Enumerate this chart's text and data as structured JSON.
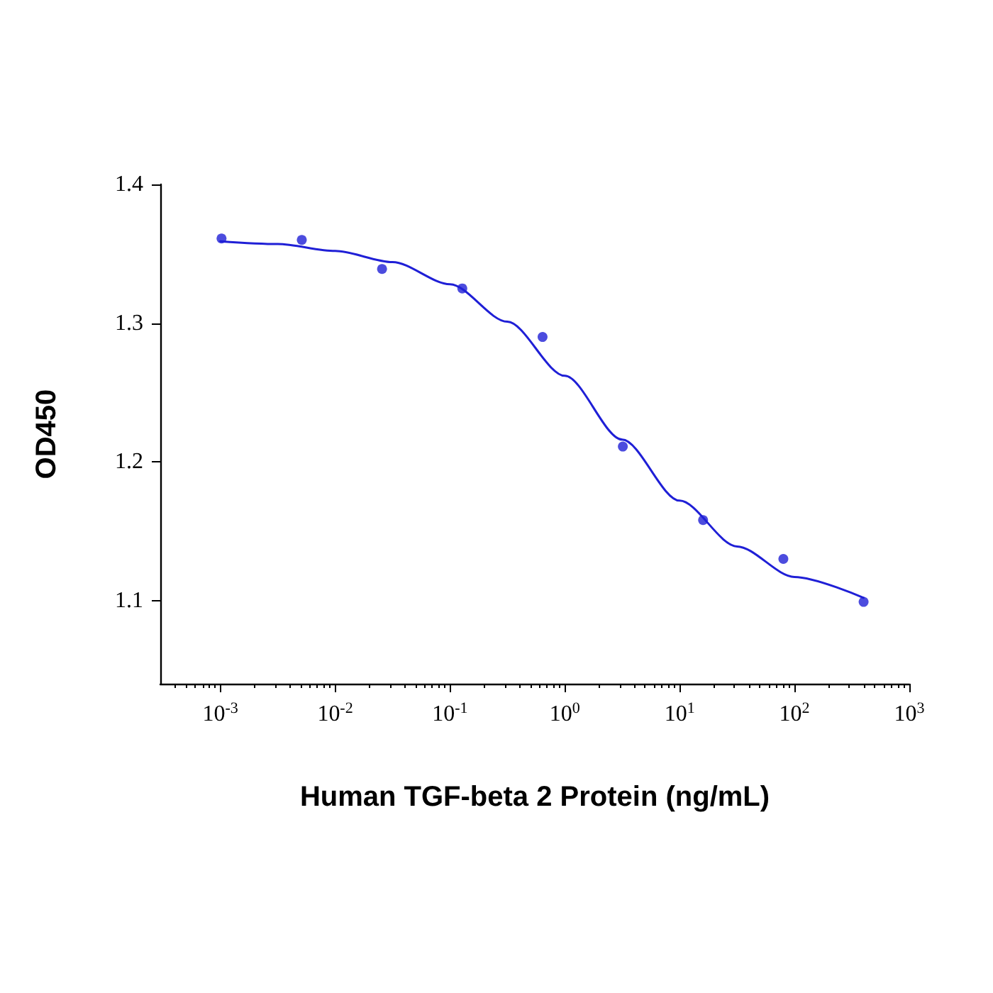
{
  "chart_data": {
    "type": "scatter",
    "xlabel": "Human TGF-beta 2 Protein (ng/mL)",
    "ylabel": "OD450",
    "log": "x",
    "xlim": [
      0.0003,
      1000
    ],
    "xticks": [
      {
        "value": 0.001,
        "label": "10$^{-3}$"
      },
      {
        "value": 0.01,
        "label": "10$^{-2}$"
      },
      {
        "value": 0.1,
        "label": "10$^{-1}$"
      },
      {
        "value": 1,
        "label": "10$^{0}$"
      },
      {
        "value": 10,
        "label": "10$^{1}$"
      },
      {
        "value": 100,
        "label": "10$^{2}$"
      },
      {
        "value": 1000,
        "label": "10$^{3}$"
      }
    ],
    "ylim": [
      1.04,
      1.4
    ],
    "yticks": [
      1.1,
      1.2,
      1.3,
      1.4
    ],
    "grid": false,
    "marker": "circle",
    "series": [
      {
        "color": "#1f1fd6",
        "x": [
          0.001024,
          0.00512,
          0.0256,
          0.128,
          0.64,
          3.2,
          16,
          80,
          400
        ],
        "values": [
          1.361,
          1.36,
          1.339,
          1.325,
          1.29,
          1.211,
          1.158,
          1.13,
          1.099
        ]
      },
      {
        "type": "line",
        "color": "#1f1fd6",
        "marker": "none",
        "line_style": "solid",
        "x": [
          0.001,
          0.00316,
          0.01,
          0.0316,
          0.1,
          0.316,
          1,
          3.16,
          10,
          31.6,
          100,
          400
        ],
        "values": [
          1.359,
          1.357,
          1.352,
          1.344,
          1.328,
          1.301,
          1.262,
          1.216,
          1.172,
          1.139,
          1.117,
          1.102
        ]
      }
    ]
  }
}
